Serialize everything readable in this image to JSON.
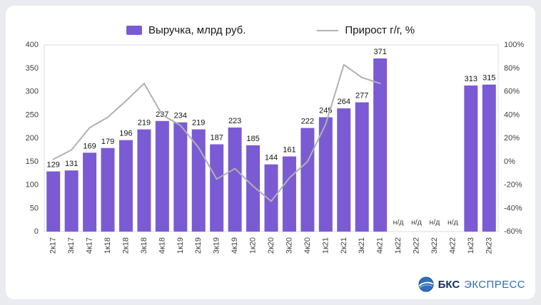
{
  "page": {
    "background": "#e9ebef",
    "card_background": "#ffffff"
  },
  "legend": {
    "bars_label": "Выручка, млрд руб.",
    "line_label": "Прирост г/г, %"
  },
  "chart_data": {
    "type": "bar",
    "title": "",
    "xlabel": "",
    "ylabel": "",
    "grid": false,
    "legend_position": "top",
    "categories": [
      "2к17",
      "3к17",
      "4к17",
      "1к18",
      "2к18",
      "3к18",
      "4к18",
      "1к19",
      "2к19",
      "3к19",
      "4к19",
      "1к20",
      "2к20",
      "3к20",
      "4к20",
      "1к21",
      "2к21",
      "3к21",
      "4к21",
      "1к22",
      "2к22",
      "3к22",
      "4к22",
      "1к23",
      "2к23"
    ],
    "series": [
      {
        "name": "Выручка, млрд руб.",
        "type": "bar",
        "axis": "left",
        "color": "#7a5bd3",
        "values": [
          129,
          131,
          169,
          179,
          196,
          219,
          237,
          234,
          219,
          187,
          223,
          185,
          144,
          161,
          222,
          245,
          264,
          277,
          371,
          null,
          null,
          null,
          null,
          313,
          315
        ]
      },
      {
        "name": "Прирост г/г, %",
        "type": "line",
        "axis": "right",
        "color": "#b1b1b1",
        "values": [
          2,
          10,
          29,
          38,
          52,
          67,
          40,
          31,
          12,
          -15,
          -6,
          -21,
          -34,
          -14,
          0,
          32,
          83,
          72,
          67,
          null,
          null,
          null,
          null,
          null,
          null
        ]
      }
    ],
    "no_data_label": "н/д",
    "left_axis": {
      "min": 0,
      "max": 400,
      "step": 50,
      "ticks": [
        "0",
        "50",
        "100",
        "150",
        "200",
        "250",
        "300",
        "350",
        "400"
      ]
    },
    "right_axis": {
      "min": -60,
      "max": 100,
      "step": 20,
      "ticks": [
        "-60%",
        "-40%",
        "-20%",
        "0%",
        "20%",
        "40%",
        "60%",
        "80%",
        "100%"
      ]
    }
  },
  "branding": {
    "name_primary": "БКС",
    "name_secondary": "ЭКСПРЕСС"
  }
}
